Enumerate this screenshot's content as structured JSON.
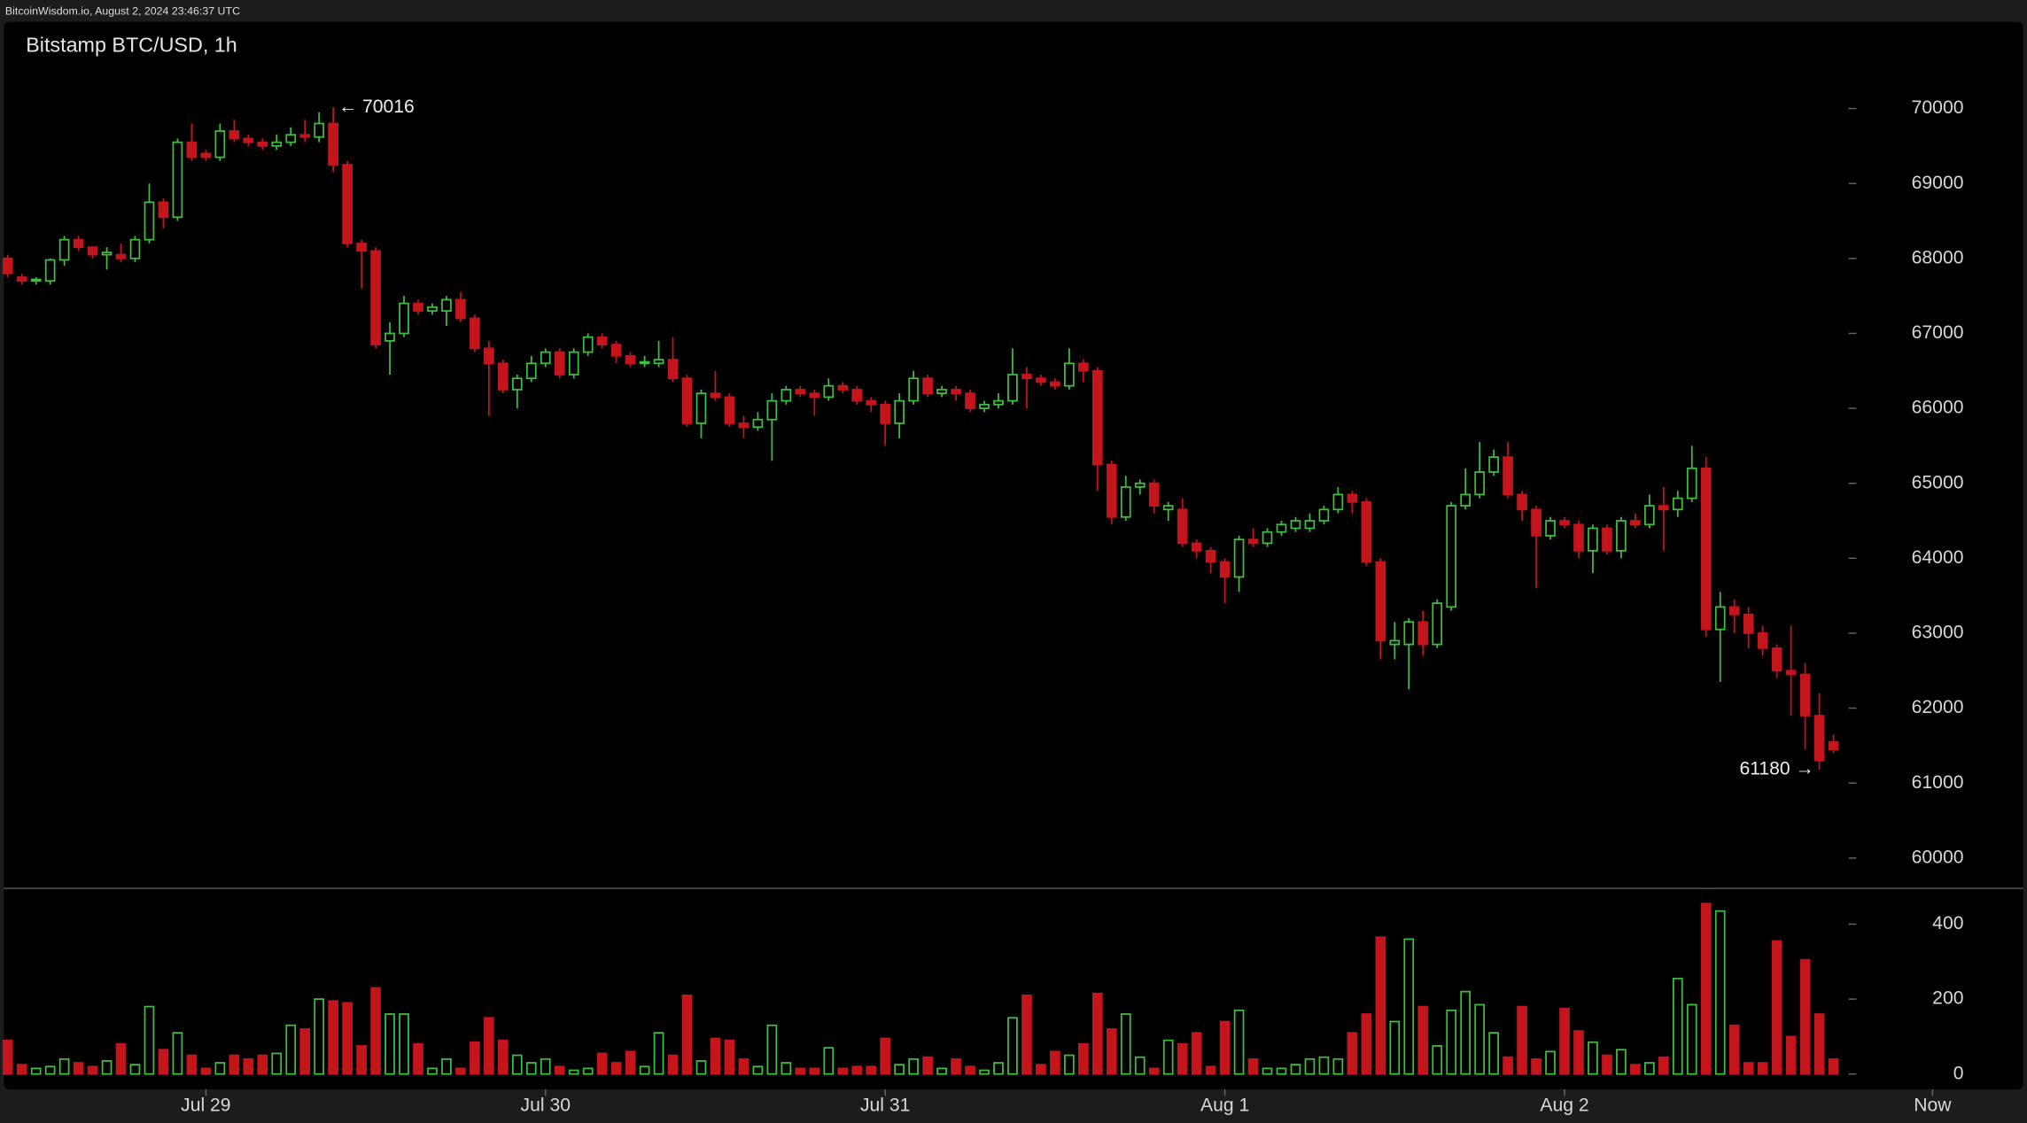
{
  "header": "BitcoinWisdom.io, August 2, 2024 23:46:37 UTC",
  "chart_data": [
    {
      "type": "candlestick",
      "title": "Bitstamp BTC/USD, 1h",
      "up_color": "#3fbf3f",
      "down_color": "#c4141c",
      "xlim": [
        -0.27,
        142.4
      ],
      "xticks": [
        {
          "value": 14,
          "label": "Jul 29"
        },
        {
          "value": 38,
          "label": "Jul 30"
        },
        {
          "value": 62,
          "label": "Jul 31"
        },
        {
          "value": 86,
          "label": "Aug 1"
        },
        {
          "value": 110,
          "label": "Aug 2"
        },
        {
          "value": 136,
          "label": "Now"
        }
      ],
      "ylim": [
        59603,
        71155
      ],
      "yticks": [
        60000,
        61000,
        62000,
        63000,
        64000,
        65000,
        66000,
        67000,
        68000,
        69000,
        70000
      ],
      "annotations": [
        {
          "text": "← 70016",
          "value": 70016
        },
        {
          "text": "61180 →",
          "value": 61180
        }
      ],
      "open": [
        68000,
        67750,
        67700,
        67700,
        67980,
        68250,
        68150,
        68050,
        68050,
        68000,
        68250,
        68750,
        68550,
        69550,
        69400,
        69350,
        69700,
        69600,
        69550,
        69500,
        69550,
        69650,
        69620,
        69800,
        69250,
        68200,
        68100,
        66900,
        67000,
        67400,
        67300,
        67300,
        67450,
        67200,
        66800,
        66600,
        66250,
        66400,
        66600,
        66750,
        66450,
        66750,
        66950,
        66850,
        66700,
        66600,
        66600,
        66650,
        66400,
        65800,
        66200,
        66150,
        65800,
        65750,
        65850,
        66100,
        66250,
        66200,
        66150,
        66300,
        66250,
        66100,
        66050,
        65800,
        66100,
        66400,
        66200,
        66250,
        66200,
        66000,
        66050,
        66100,
        66450,
        66400,
        66350,
        66300,
        66600,
        66500,
        65250,
        64550,
        64950,
        65000,
        64650,
        64650,
        64200,
        64100,
        63950,
        63750,
        64250,
        64200,
        64350,
        64400,
        64400,
        64500,
        64650,
        64850,
        64750,
        63950,
        62850,
        62850,
        63150,
        62850,
        63350,
        64700,
        64850,
        65150,
        65350,
        64850,
        64650,
        64300,
        64500,
        64450,
        64100,
        64400,
        64100,
        64500,
        64450,
        64700,
        64650,
        64800,
        65200,
        63050,
        63350,
        63250,
        63000,
        62800,
        62500,
        62450,
        61900,
        61550
      ],
      "high": [
        68050,
        67800,
        67750,
        68000,
        68300,
        68300,
        68150,
        68150,
        68200,
        68300,
        69000,
        68800,
        69600,
        69800,
        69450,
        69800,
        69850,
        69650,
        69600,
        69650,
        69750,
        69850,
        69950,
        70016,
        69300,
        68250,
        68150,
        67150,
        67500,
        67450,
        67400,
        67500,
        67550,
        67250,
        66900,
        66650,
        66450,
        66700,
        66800,
        66800,
        66800,
        67000,
        67000,
        66900,
        66750,
        66700,
        66900,
        66950,
        66450,
        66250,
        66500,
        66200,
        65900,
        65950,
        66200,
        66300,
        66300,
        66250,
        66400,
        66350,
        66300,
        66150,
        66100,
        66200,
        66500,
        66450,
        66300,
        66300,
        66250,
        66100,
        66200,
        66800,
        66550,
        66450,
        66400,
        66800,
        66650,
        66550,
        65300,
        65100,
        65050,
        65050,
        64750,
        64800,
        64250,
        64150,
        64000,
        64300,
        64400,
        64400,
        64500,
        64550,
        64600,
        64700,
        64950,
        64900,
        64800,
        64000,
        63150,
        63200,
        63300,
        63450,
        64750,
        65200,
        65550,
        65450,
        65550,
        64900,
        64700,
        64550,
        64550,
        64500,
        64450,
        64450,
        64550,
        64600,
        64850,
        64950,
        64900,
        65500,
        65350,
        63550,
        63450,
        63350,
        63100,
        62850,
        63100,
        62600,
        62200,
        61650
      ],
      "low": [
        67750,
        67650,
        67650,
        67650,
        67900,
        68100,
        68000,
        67850,
        67950,
        67950,
        68200,
        68400,
        68500,
        69300,
        69300,
        69300,
        69550,
        69500,
        69450,
        69450,
        69500,
        69550,
        69550,
        69150,
        68150,
        67600,
        66800,
        66450,
        66950,
        67250,
        67250,
        67100,
        67150,
        66750,
        65900,
        66200,
        66000,
        66350,
        66550,
        66400,
        66400,
        66700,
        66800,
        66600,
        66550,
        66550,
        66550,
        66350,
        65750,
        65600,
        66100,
        65750,
        65600,
        65700,
        65300,
        66050,
        66150,
        65900,
        66100,
        66200,
        66050,
        65950,
        65500,
        65600,
        66050,
        66150,
        66150,
        66100,
        65950,
        65950,
        66000,
        66050,
        66000,
        66300,
        66250,
        66250,
        66350,
        64900,
        64450,
        64500,
        64850,
        64600,
        64500,
        64150,
        64000,
        63800,
        63400,
        63550,
        64150,
        64150,
        64300,
        64350,
        64350,
        64450,
        64600,
        64600,
        63900,
        62650,
        62650,
        62250,
        62700,
        62800,
        63300,
        64650,
        64800,
        65100,
        64800,
        64500,
        63600,
        64250,
        64400,
        64000,
        63800,
        64050,
        64000,
        64400,
        64400,
        64100,
        64550,
        64750,
        62950,
        62350,
        63000,
        62800,
        62700,
        62400,
        61900,
        61450,
        61180,
        61400
      ],
      "close": [
        67800,
        67700,
        67720,
        67980,
        68250,
        68150,
        68050,
        68080,
        68000,
        68250,
        68750,
        68550,
        69550,
        69350,
        69350,
        69700,
        69600,
        69550,
        69500,
        69550,
        69650,
        69620,
        69800,
        69250,
        68200,
        68100,
        66850,
        67000,
        67400,
        67300,
        67350,
        67450,
        67200,
        66800,
        66600,
        66250,
        66400,
        66600,
        66750,
        66450,
        66750,
        66950,
        66850,
        66700,
        66600,
        66620,
        66650,
        66400,
        65800,
        66200,
        66150,
        65800,
        65750,
        65850,
        66100,
        66250,
        66200,
        66150,
        66300,
        66250,
        66100,
        66050,
        65800,
        66100,
        66400,
        66200,
        66250,
        66200,
        66000,
        66050,
        66100,
        66450,
        66400,
        66350,
        66300,
        66600,
        66500,
        65250,
        64550,
        64950,
        65000,
        64700,
        64700,
        64200,
        64100,
        63950,
        63750,
        64250,
        64200,
        64350,
        64450,
        64500,
        64500,
        64650,
        64850,
        64750,
        63950,
        62900,
        62900,
        63150,
        62850,
        63400,
        64700,
        64850,
        65150,
        65350,
        64850,
        64650,
        64300,
        64500,
        64450,
        64100,
        64400,
        64100,
        64500,
        64450,
        64700,
        64650,
        64800,
        65200,
        63050,
        63350,
        63250,
        63000,
        62800,
        62500,
        62450,
        61900,
        61300,
        61450
      ]
    },
    {
      "type": "bar",
      "ylim": [
        -41,
        497
      ],
      "yticks": [
        0,
        200,
        400
      ],
      "values": [
        90,
        25,
        15,
        20,
        40,
        30,
        20,
        35,
        80,
        25,
        180,
        65,
        110,
        50,
        15,
        30,
        50,
        40,
        50,
        55,
        130,
        120,
        200,
        195,
        190,
        75,
        230,
        160,
        160,
        80,
        15,
        40,
        15,
        85,
        150,
        90,
        50,
        30,
        40,
        20,
        10,
        15,
        55,
        30,
        60,
        20,
        110,
        50,
        210,
        35,
        95,
        90,
        40,
        20,
        130,
        30,
        15,
        15,
        70,
        15,
        20,
        20,
        95,
        25,
        40,
        45,
        15,
        40,
        20,
        10,
        30,
        150,
        210,
        25,
        60,
        50,
        80,
        215,
        120,
        160,
        45,
        15,
        90,
        80,
        110,
        20,
        140,
        170,
        40,
        15,
        15,
        25,
        40,
        45,
        40,
        110,
        160,
        365,
        140,
        360,
        180,
        75,
        170,
        220,
        185,
        110,
        45,
        180,
        40,
        60,
        175,
        115,
        85,
        50,
        65,
        25,
        30,
        45,
        255,
        185,
        455,
        435,
        130,
        30,
        30,
        355,
        100,
        305,
        160,
        40
      ]
    }
  ]
}
